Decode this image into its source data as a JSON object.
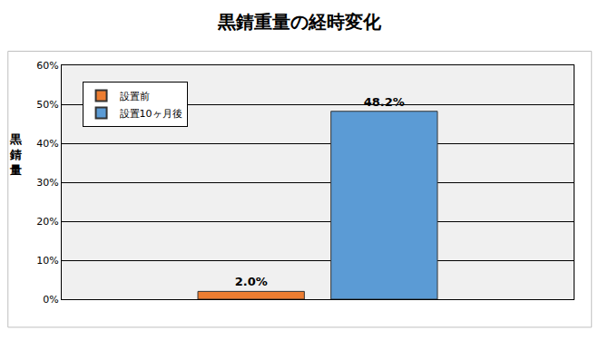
{
  "chart_data": {
    "type": "bar",
    "title": "黒錆重量の経時変化",
    "y_label": "黒錆量",
    "categories": [
      null
    ],
    "series": [
      {
        "name": "設置前",
        "color": "#ed7d31",
        "values": [
          2.0
        ],
        "value_labels": [
          "2.0%"
        ]
      },
      {
        "name": "設置10ヶ月後",
        "color": "#5b9bd5",
        "values": [
          48.2
        ],
        "value_labels": [
          "48.2%"
        ]
      }
    ],
    "ylim": [
      0,
      60
    ],
    "yticks": [
      {
        "value": 0,
        "label": "0%"
      },
      {
        "value": 10,
        "label": "10%"
      },
      {
        "value": 20,
        "label": "20%"
      },
      {
        "value": 30,
        "label": "30%"
      },
      {
        "value": 40,
        "label": "40%"
      },
      {
        "value": 50,
        "label": "50%"
      },
      {
        "value": 60,
        "label": "60%"
      }
    ],
    "grid": true,
    "legend": "upper left",
    "data_labels": true,
    "tick_labels": "y"
  }
}
